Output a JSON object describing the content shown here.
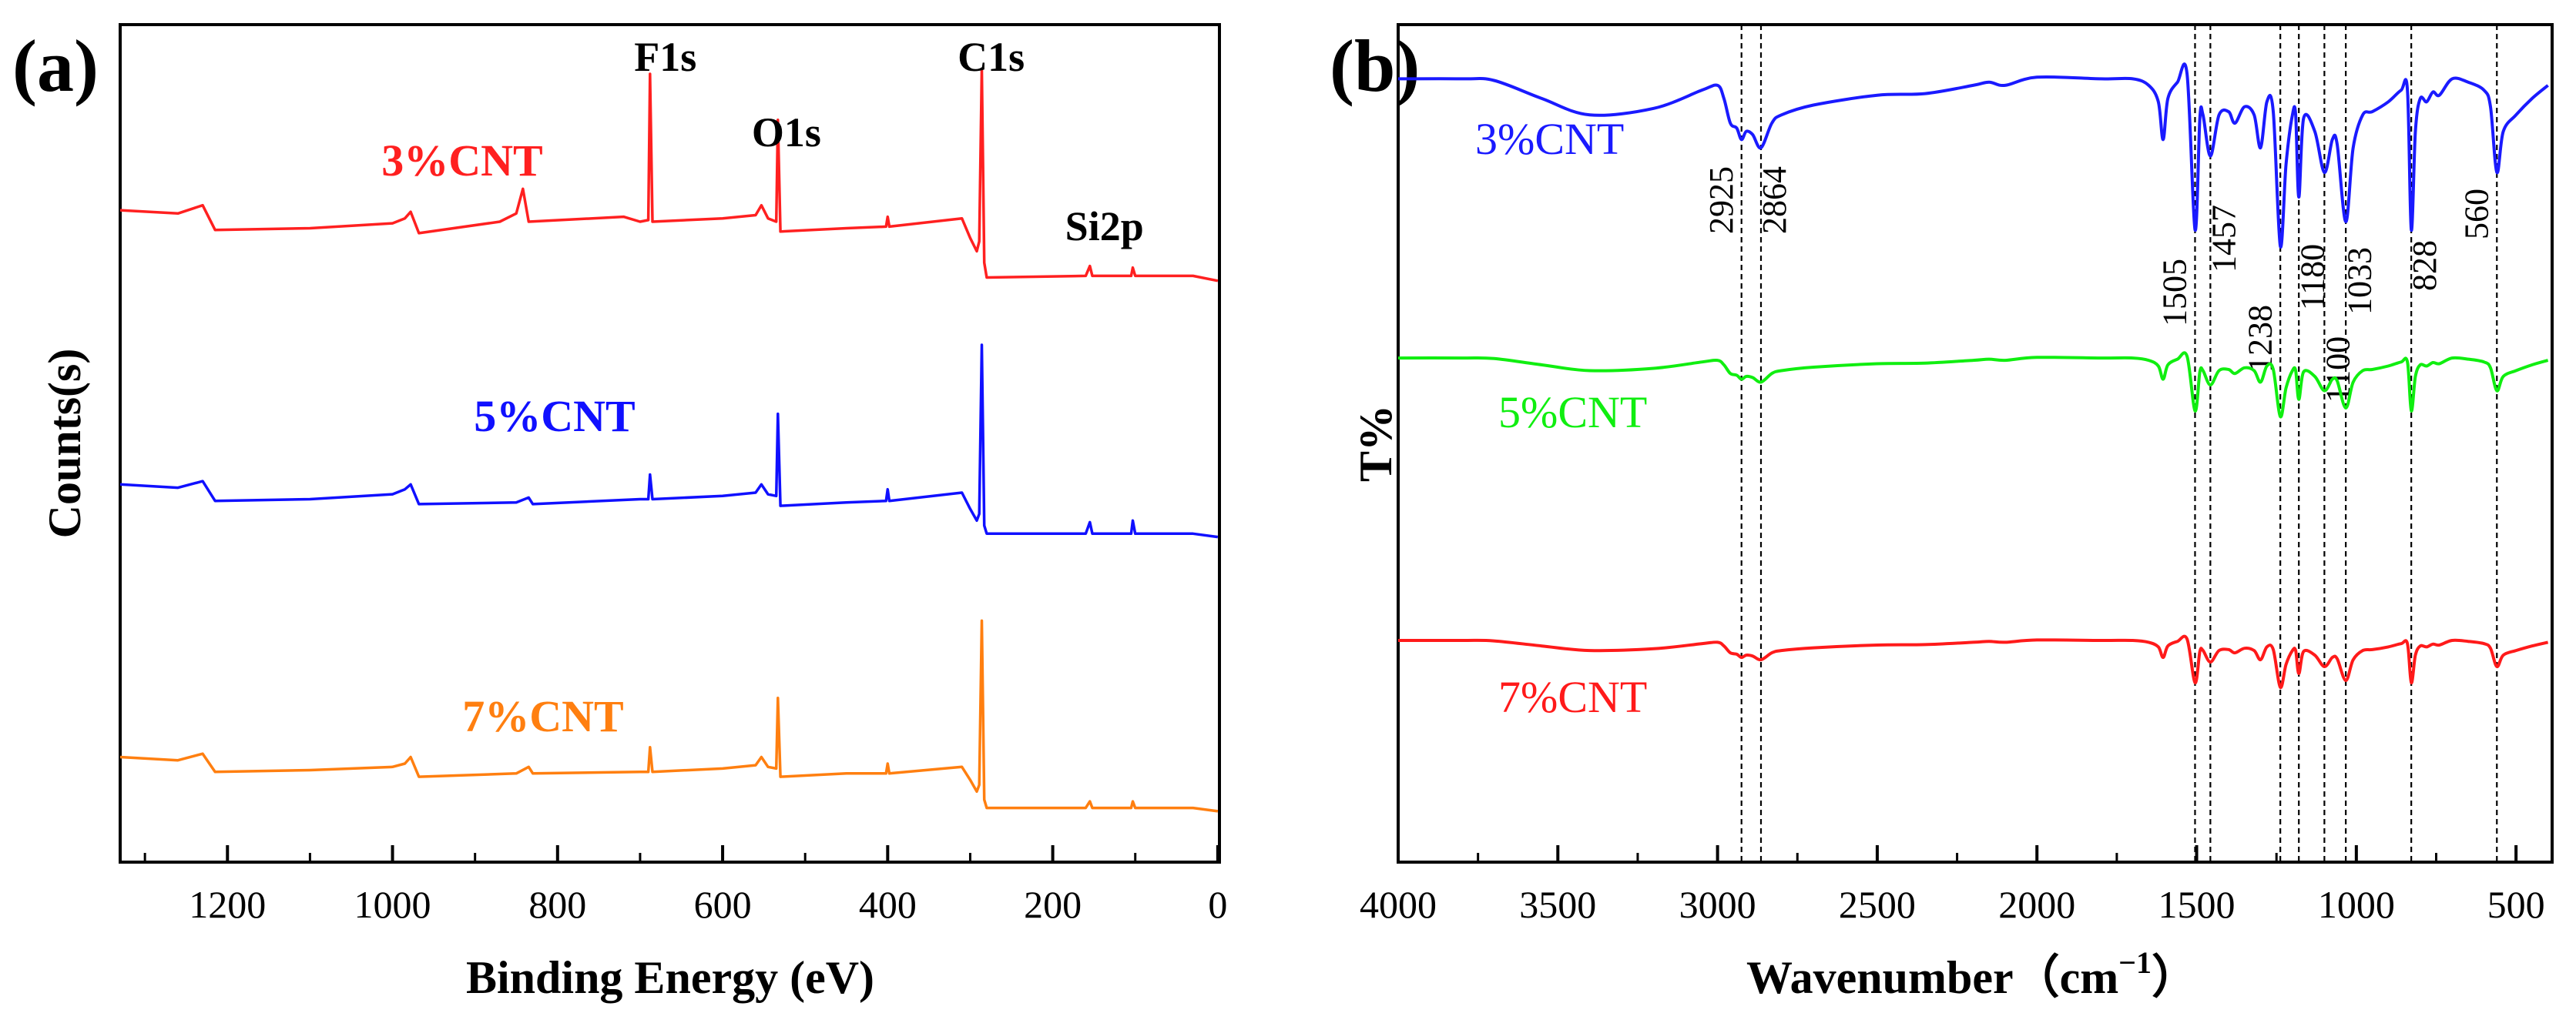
{
  "chart_data": [
    {
      "panel_label": "(a)",
      "type": "line",
      "title": "",
      "xlabel": "Binding Energy (eV)",
      "ylabel": "Counts(s)",
      "xlim": [
        1330,
        -2
      ],
      "ylim": [
        0,
        510
      ],
      "x_ticks": [
        1200,
        1000,
        800,
        600,
        400,
        200,
        0
      ],
      "x_minor_ticks": [
        1300,
        1100,
        900,
        700,
        500,
        300,
        100
      ],
      "grid": false,
      "annotations": [
        {
          "text": "F1s",
          "x": 688
        },
        {
          "text": "O1s",
          "x": 532
        },
        {
          "text": "C1s",
          "x": 284
        },
        {
          "text": "Si2p",
          "x": 100
        }
      ],
      "series": [
        {
          "name": "3%CNT",
          "color": "#ff2020",
          "points": [
            [
              1330,
              397
            ],
            [
              1260,
              395
            ],
            [
              1230,
              400
            ],
            [
              1215,
              385
            ],
            [
              1100,
              386
            ],
            [
              1000,
              389
            ],
            [
              985,
              392
            ],
            [
              978,
              396
            ],
            [
              968,
              383
            ],
            [
              870,
              390
            ],
            [
              850,
              395
            ],
            [
              842,
              410
            ],
            [
              835,
              390
            ],
            [
              720,
              393
            ],
            [
              700,
              390
            ],
            [
              690,
              391
            ],
            [
              688,
              480
            ],
            [
              685,
              390
            ],
            [
              600,
              392
            ],
            [
              560,
              394
            ],
            [
              553,
              400
            ],
            [
              545,
              392
            ],
            [
              535,
              390
            ],
            [
              533,
              452
            ],
            [
              530,
              384
            ],
            [
              450,
              386
            ],
            [
              402,
              387
            ],
            [
              400,
              393
            ],
            [
              398,
              387
            ],
            [
              310,
              392
            ],
            [
              300,
              380
            ],
            [
              292,
              372
            ],
            [
              289,
              378
            ],
            [
              286,
              483
            ],
            [
              283,
              365
            ],
            [
              280,
              356
            ],
            [
              160,
              357
            ],
            [
              155,
              363
            ],
            [
              152,
              357
            ],
            [
              105,
              357
            ],
            [
              103,
              362
            ],
            [
              100,
              357
            ],
            [
              30,
              357
            ],
            [
              0,
              354
            ]
          ]
        },
        {
          "name": "5%CNT",
          "color": "#1010ff",
          "points": [
            [
              1330,
              230
            ],
            [
              1260,
              228
            ],
            [
              1230,
              232
            ],
            [
              1215,
              220
            ],
            [
              1100,
              221
            ],
            [
              1000,
              224
            ],
            [
              985,
              227
            ],
            [
              978,
              230
            ],
            [
              968,
              218
            ],
            [
              850,
              219
            ],
            [
              835,
              222
            ],
            [
              830,
              218
            ],
            [
              700,
              221
            ],
            [
              690,
              221
            ],
            [
              688,
              236
            ],
            [
              685,
              221
            ],
            [
              600,
              223
            ],
            [
              560,
              225
            ],
            [
              553,
              230
            ],
            [
              545,
              224
            ],
            [
              535,
              223
            ],
            [
              533,
              273
            ],
            [
              530,
              217
            ],
            [
              450,
              219
            ],
            [
              402,
              220
            ],
            [
              400,
              227
            ],
            [
              398,
              220
            ],
            [
              310,
              225
            ],
            [
              300,
              215
            ],
            [
              292,
              208
            ],
            [
              289,
              212
            ],
            [
              286,
              315
            ],
            [
              283,
              205
            ],
            [
              280,
              200
            ],
            [
              160,
              200
            ],
            [
              155,
              207
            ],
            [
              152,
              200
            ],
            [
              105,
              200
            ],
            [
              103,
              208
            ],
            [
              100,
              200
            ],
            [
              30,
              200
            ],
            [
              0,
              198
            ]
          ]
        },
        {
          "name": "7%CNT",
          "color": "#ff7f10",
          "points": [
            [
              1330,
              64
            ],
            [
              1260,
              62
            ],
            [
              1230,
              66
            ],
            [
              1215,
              55
            ],
            [
              1100,
              56
            ],
            [
              1000,
              58
            ],
            [
              985,
              60
            ],
            [
              978,
              64
            ],
            [
              968,
              52
            ],
            [
              850,
              54
            ],
            [
              835,
              58
            ],
            [
              830,
              54
            ],
            [
              700,
              55
            ],
            [
              690,
              55
            ],
            [
              688,
              70
            ],
            [
              685,
              55
            ],
            [
              600,
              57
            ],
            [
              560,
              59
            ],
            [
              553,
              64
            ],
            [
              545,
              58
            ],
            [
              535,
              57
            ],
            [
              533,
              100
            ],
            [
              530,
              52
            ],
            [
              450,
              54
            ],
            [
              402,
              54
            ],
            [
              400,
              60
            ],
            [
              398,
              54
            ],
            [
              310,
              58
            ],
            [
              300,
              50
            ],
            [
              292,
              43
            ],
            [
              289,
              47
            ],
            [
              286,
              147
            ],
            [
              283,
              38
            ],
            [
              280,
              33
            ],
            [
              160,
              33
            ],
            [
              155,
              37
            ],
            [
              152,
              33
            ],
            [
              105,
              33
            ],
            [
              103,
              37
            ],
            [
              100,
              33
            ],
            [
              30,
              33
            ],
            [
              0,
              31
            ]
          ]
        }
      ]
    },
    {
      "panel_label": "(b)",
      "type": "line",
      "title": "",
      "xlabel": "Wavenumber（cm",
      "xlabel_superscript": "−1",
      "xlabel_suffix": "）",
      "ylabel": "T%",
      "xlim": [
        4000,
        387
      ],
      "ylim": [
        0,
        510
      ],
      "x_ticks": [
        4000,
        3500,
        3000,
        2500,
        2000,
        1500,
        1000,
        500
      ],
      "x_minor_ticks": [
        3750,
        3250,
        2750,
        2250,
        1750,
        1250,
        750
      ],
      "grid": false,
      "reference_lines": [
        2925,
        2864,
        1505,
        1457,
        1238,
        1180,
        1100,
        1033,
        828,
        560
      ],
      "x": [
        4000,
        3800,
        3700,
        3550,
        3400,
        3200,
        3050,
        3000,
        2980,
        2960,
        2940,
        2925,
        2910,
        2890,
        2864,
        2830,
        2800,
        2700,
        2500,
        2350,
        2200,
        2150,
        2100,
        2000,
        1800,
        1700,
        1650,
        1620,
        1605,
        1590,
        1560,
        1530,
        1505,
        1490,
        1480,
        1457,
        1430,
        1400,
        1380,
        1350,
        1320,
        1300,
        1280,
        1260,
        1238,
        1220,
        1200,
        1190,
        1180,
        1165,
        1130,
        1100,
        1075,
        1060,
        1033,
        1010,
        980,
        950,
        900,
        860,
        840,
        828,
        815,
        800,
        780,
        760,
        740,
        700,
        650,
        600,
        580,
        560,
        540,
        500,
        450,
        400
      ],
      "series": [
        {
          "name": "3%CNT",
          "color": "#1a1aff",
          "baseline": 477,
          "intensity_scale": 1.0,
          "values": [
            477,
            477,
            476,
            465,
            455,
            459,
            470,
            473,
            465,
            450,
            447,
            440,
            445,
            443,
            435,
            450,
            455,
            461,
            467,
            468,
            473,
            475,
            473,
            478,
            477,
            477,
            473,
            463,
            440,
            465,
            475,
            480,
            385,
            453,
            455,
            430,
            455,
            457,
            450,
            460,
            455,
            435,
            463,
            457,
            375,
            425,
            455,
            455,
            405,
            453,
            445,
            420,
            440,
            437,
            390,
            435,
            455,
            457,
            463,
            470,
            470,
            385,
            445,
            465,
            463,
            469,
            467,
            477,
            475,
            470,
            460,
            420,
            445,
            455,
            465,
            473
          ]
        },
        {
          "name": "5%CNT",
          "color": "#10ee10",
          "derived_from": "3%CNT",
          "baseline": 307,
          "intensity_scale": 0.35
        },
        {
          "name": "7%CNT",
          "color": "#ff1a1a",
          "derived_from": "3%CNT",
          "baseline": 135,
          "intensity_scale": 0.28
        }
      ]
    }
  ]
}
